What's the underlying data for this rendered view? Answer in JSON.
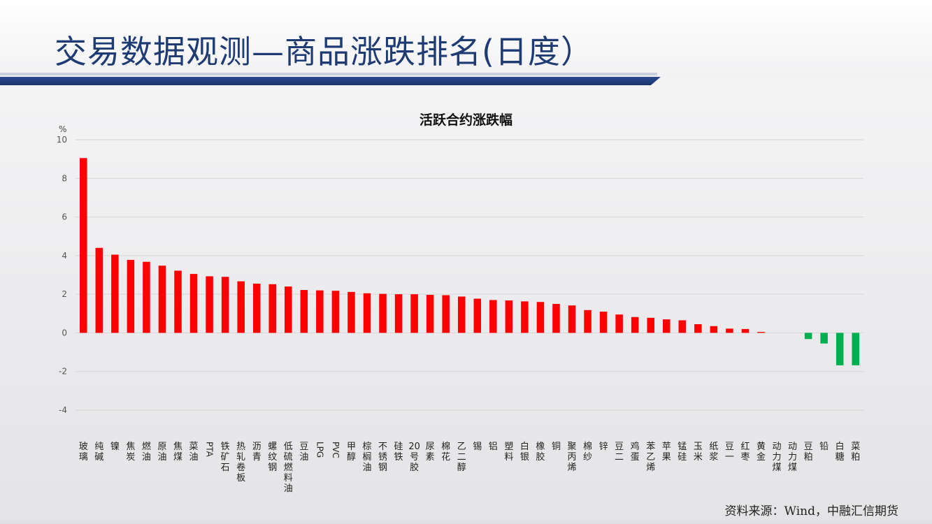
{
  "header": {
    "title": "交易数据观测—商品涨跌排名(日度）"
  },
  "source": "资料来源：Wind，中融汇信期货",
  "colors": {
    "up": "#ff0000",
    "down": "#00b050",
    "title": "#1f3b73",
    "bar": "#1a3670"
  },
  "chart_data": {
    "type": "bar",
    "title": "活跃合约涨跌幅",
    "ylabel": "%",
    "xlabel": "",
    "ylim": [
      -4,
      10
    ],
    "yticks": [
      10,
      8,
      6,
      4,
      2,
      0,
      -2,
      -4
    ],
    "grid": true,
    "categories": [
      "玻璃",
      "纯碱",
      "镍",
      "焦炭",
      "燃油",
      "原油",
      "焦煤",
      "菜油",
      "PTA",
      "铁矿石",
      "热轧卷板",
      "沥青",
      "螺纹钢",
      "低硫燃料油",
      "豆油",
      "LPG",
      "PVC",
      "甲醇",
      "棕榈油",
      "不锈钢",
      "硅铁",
      "20号胶",
      "尿素",
      "棉花",
      "乙二醇",
      "锡",
      "铝",
      "塑料",
      "白银",
      "橡胶",
      "铜",
      "聚丙烯",
      "棉纱",
      "锌",
      "豆二",
      "鸡蛋",
      "苯乙烯",
      "苹果",
      "锰硅",
      "玉米",
      "纸浆",
      "豆一",
      "红枣",
      "黄金",
      "动力煤",
      "动力煤",
      "豆粕",
      "铅",
      "白糖",
      "菜粕"
    ],
    "values": [
      9.05,
      4.4,
      4.05,
      3.78,
      3.68,
      3.48,
      3.22,
      3.05,
      2.93,
      2.9,
      2.67,
      2.55,
      2.52,
      2.4,
      2.22,
      2.2,
      2.18,
      2.12,
      2.05,
      2.02,
      2.0,
      2.0,
      1.97,
      1.95,
      1.88,
      1.77,
      1.7,
      1.68,
      1.63,
      1.6,
      1.5,
      1.42,
      1.18,
      1.1,
      0.95,
      0.82,
      0.78,
      0.7,
      0.65,
      0.45,
      0.35,
      0.22,
      0.2,
      0.05,
      0.0,
      0.0,
      -0.32,
      -0.55,
      -1.68,
      -1.68
    ]
  }
}
